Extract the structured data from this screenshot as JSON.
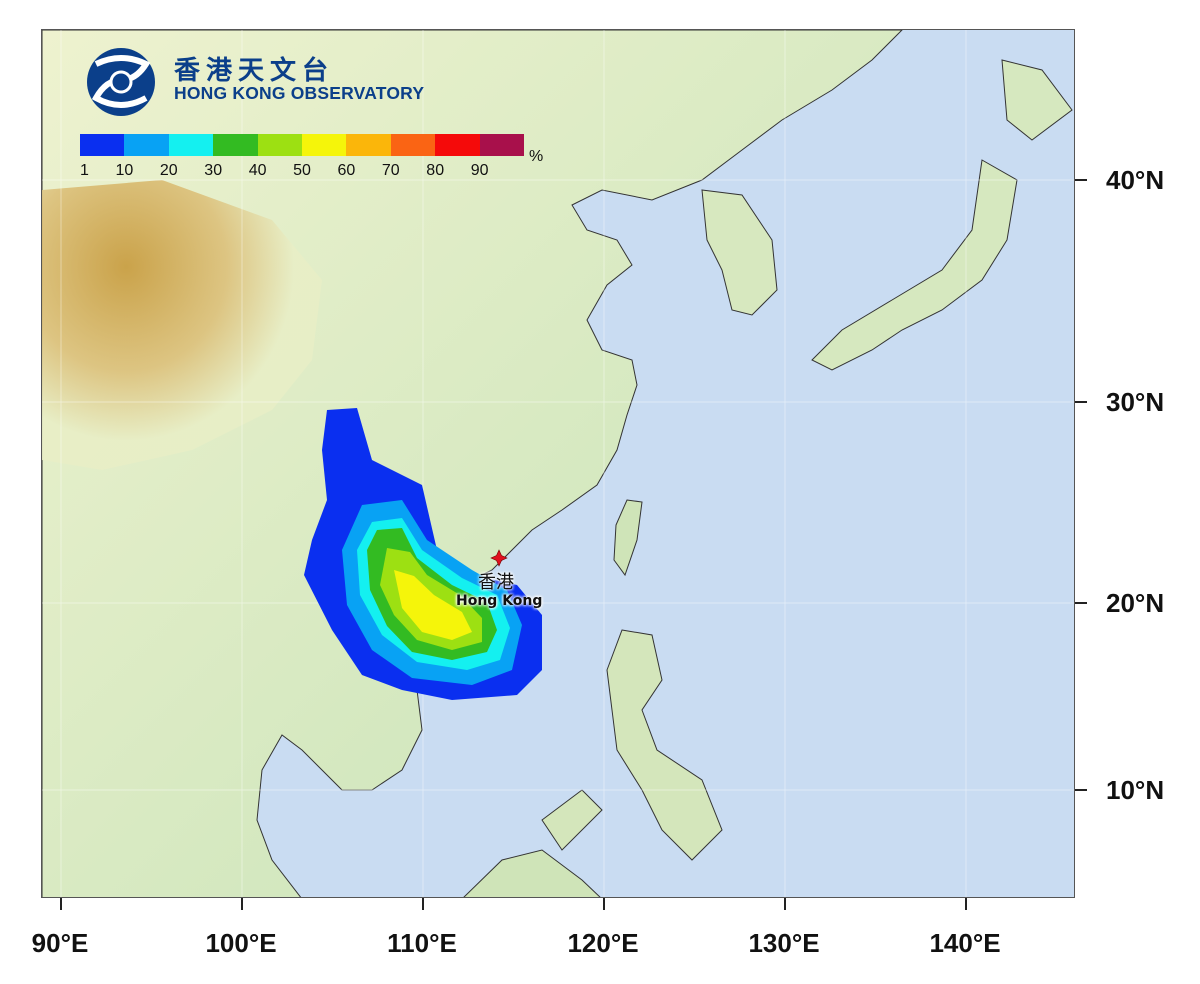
{
  "organization": {
    "name_cn": "香港天文台",
    "name_en": "HONG KONG OBSERVATORY",
    "logo": "hko-logo-icon"
  },
  "legend": {
    "unit": "%",
    "tick_labels": [
      "1",
      "10",
      "20",
      "30",
      "40",
      "50",
      "60",
      "70",
      "80",
      "90"
    ],
    "colors": [
      "#0a2ff0",
      "#08a2f4",
      "#14f0f0",
      "#33bb22",
      "#9de012",
      "#f5f50a",
      "#fbb60a",
      "#fa6414",
      "#f50a0a",
      "#a8104b"
    ]
  },
  "axes": {
    "latitude_labels": [
      "40°N",
      "30°N",
      "20°N",
      "10°N"
    ],
    "longitude_labels": [
      "90°E",
      "100°E",
      "110°E",
      "120°E",
      "130°E",
      "140°E"
    ],
    "lon_range": [
      89,
      146
    ],
    "lat_range": [
      5,
      45
    ]
  },
  "marker": {
    "icon": "red-star-marker-icon",
    "label_cn": "香港",
    "label_en": "Hong Kong",
    "color": "#e0101e"
  },
  "colors": {
    "ocean": "#c9dcf2",
    "land_low": "#bfe3b2",
    "land_mid": "#e8efc4",
    "land_high": "#d4a84a"
  }
}
